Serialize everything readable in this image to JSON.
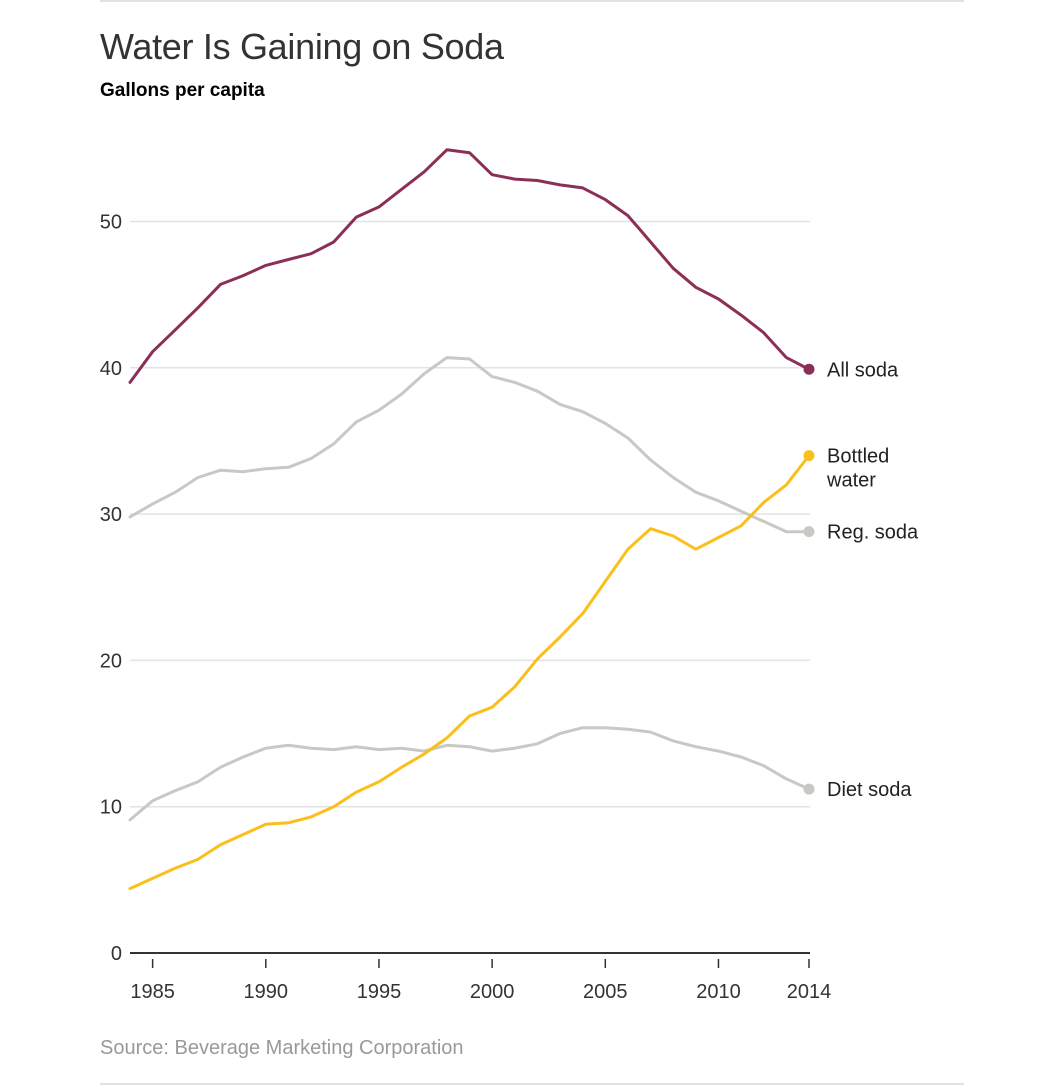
{
  "header": {
    "title": "Water Is Gaining on Soda",
    "subtitle": "Gallons per capita"
  },
  "footer": {
    "source": "Source: Beverage Marketing Corporation"
  },
  "chart_data": {
    "type": "line",
    "title": "Water Is Gaining on Soda",
    "subtitle": "Gallons per capita",
    "xlabel": "",
    "ylabel": "Gallons per capita",
    "xlim": [
      1984,
      2014
    ],
    "ylim": [
      0,
      55
    ],
    "x_ticks": [
      1985,
      1990,
      1995,
      2000,
      2005,
      2010,
      2014
    ],
    "y_ticks": [
      0,
      10,
      20,
      30,
      40,
      50
    ],
    "grid": true,
    "legend": "direct labels at right end of lines",
    "x": [
      1984,
      1985,
      1986,
      1987,
      1988,
      1989,
      1990,
      1991,
      1992,
      1993,
      1994,
      1995,
      1996,
      1997,
      1998,
      1999,
      2000,
      2001,
      2002,
      2003,
      2004,
      2005,
      2006,
      2007,
      2008,
      2009,
      2010,
      2011,
      2012,
      2013,
      2014
    ],
    "series": [
      {
        "name": "All soda",
        "label": [
          "All soda"
        ],
        "color": "#8b2f57",
        "values": [
          39.0,
          41.1,
          42.6,
          44.1,
          45.7,
          46.3,
          47.0,
          47.4,
          47.8,
          48.6,
          50.3,
          51.0,
          52.2,
          53.4,
          54.9,
          54.7,
          53.2,
          52.9,
          52.8,
          52.5,
          52.3,
          51.5,
          50.4,
          48.6,
          46.8,
          45.5,
          44.7,
          43.6,
          42.4,
          40.7,
          39.9
        ]
      },
      {
        "name": "Bottled water",
        "label": [
          "Bottled",
          "water"
        ],
        "color": "#fbbf1c",
        "values": [
          4.4,
          5.1,
          5.8,
          6.4,
          7.4,
          8.1,
          8.8,
          8.9,
          9.3,
          10.0,
          11.0,
          11.7,
          12.7,
          13.6,
          14.7,
          16.2,
          16.8,
          18.2,
          20.1,
          21.6,
          23.2,
          25.4,
          27.6,
          29.0,
          28.5,
          27.6,
          28.4,
          29.2,
          30.8,
          32.0,
          34.0
        ]
      },
      {
        "name": "Reg. soda",
        "label": [
          "Reg. soda"
        ],
        "color": "#c8c8c4",
        "values": [
          29.8,
          30.7,
          31.5,
          32.5,
          33.0,
          32.9,
          33.1,
          33.2,
          33.8,
          34.8,
          36.3,
          37.1,
          38.2,
          39.6,
          40.7,
          40.6,
          39.4,
          39.0,
          38.4,
          37.5,
          37.0,
          36.2,
          35.2,
          33.7,
          32.5,
          31.5,
          30.9,
          30.2,
          29.5,
          28.8,
          28.8
        ]
      },
      {
        "name": "Diet soda",
        "label": [
          "Diet soda"
        ],
        "color": "#c8c8c4",
        "values": [
          9.1,
          10.4,
          11.1,
          11.7,
          12.7,
          13.4,
          14.0,
          14.2,
          14.0,
          13.9,
          14.1,
          13.9,
          14.0,
          13.8,
          14.2,
          14.1,
          13.8,
          14.0,
          14.3,
          15.0,
          15.4,
          15.4,
          15.3,
          15.1,
          14.5,
          14.1,
          13.8,
          13.4,
          12.8,
          11.9,
          11.2
        ]
      }
    ],
    "source": "Source: Beverage Marketing Corporation"
  }
}
